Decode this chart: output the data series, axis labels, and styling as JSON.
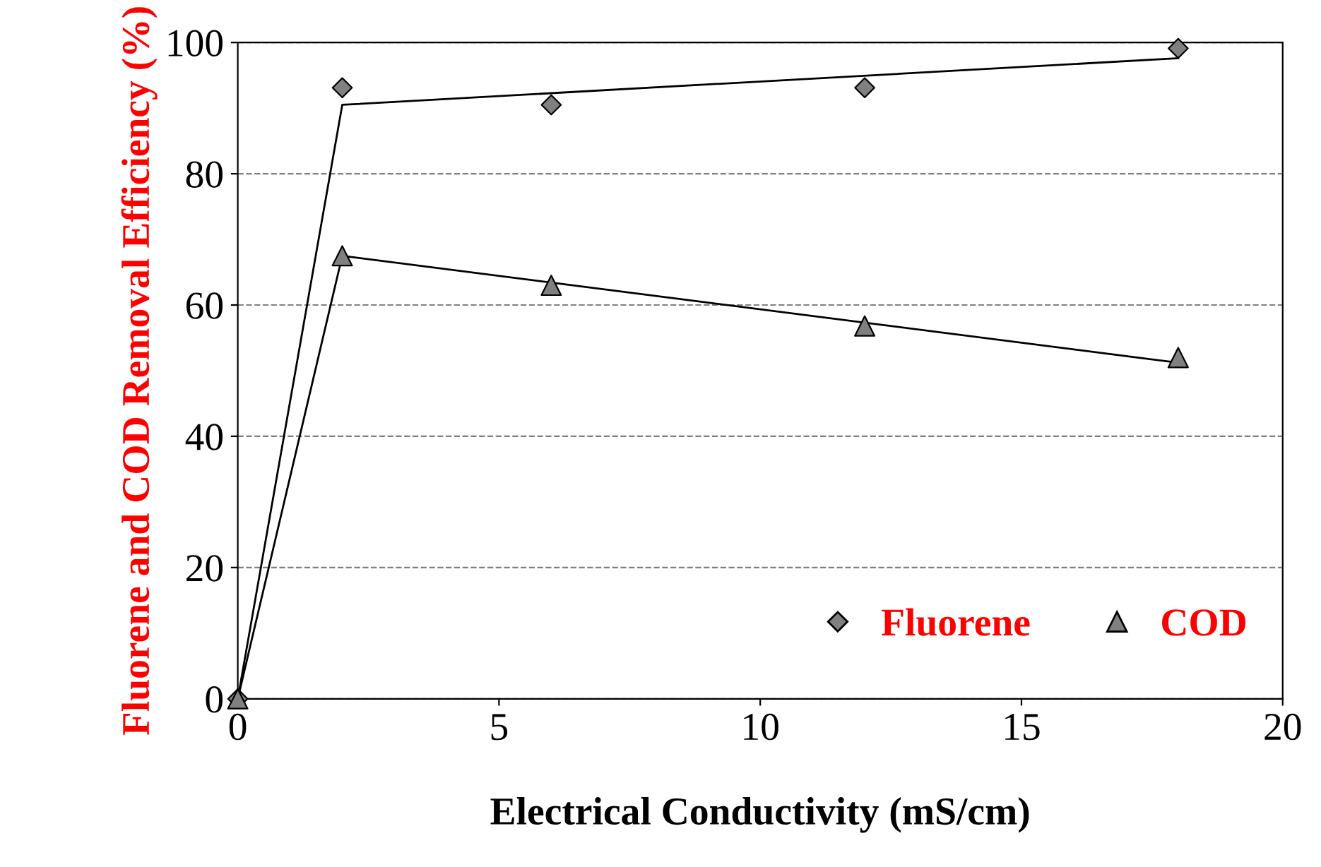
{
  "chart_data": {
    "type": "scatter",
    "xlabel": "Electrical Conductivity (mS/cm)",
    "ylabel": "Fluorene and COD Removal Efficiency (%)",
    "xlim": [
      0,
      20
    ],
    "ylim": [
      0,
      100
    ],
    "xticks": [
      0,
      5,
      10,
      15,
      20
    ],
    "yticks": [
      0,
      20,
      40,
      60,
      80,
      100
    ],
    "grid": "y",
    "legend": "bottom right",
    "series": [
      {
        "name": "Fluorene",
        "marker": "diamond",
        "color": "#808080",
        "x": [
          0,
          2,
          6,
          12,
          18
        ],
        "values": [
          0,
          93.1,
          90.5,
          93.1,
          99.1
        ]
      },
      {
        "name": "COD",
        "marker": "triangle",
        "color": "#808080",
        "x": [
          0,
          2,
          6,
          12,
          18
        ],
        "values": [
          0,
          67.5,
          63,
          56.8,
          52
        ]
      },
      {
        "type": "line",
        "marker": "none",
        "color": "#000000",
        "x": [
          0,
          2,
          18
        ],
        "values": [
          0,
          90.5,
          97.6
        ]
      },
      {
        "type": "line",
        "marker": "none",
        "color": "#000000",
        "x": [
          0,
          2,
          18
        ],
        "values": [
          0,
          67.5,
          51.2
        ]
      }
    ]
  }
}
